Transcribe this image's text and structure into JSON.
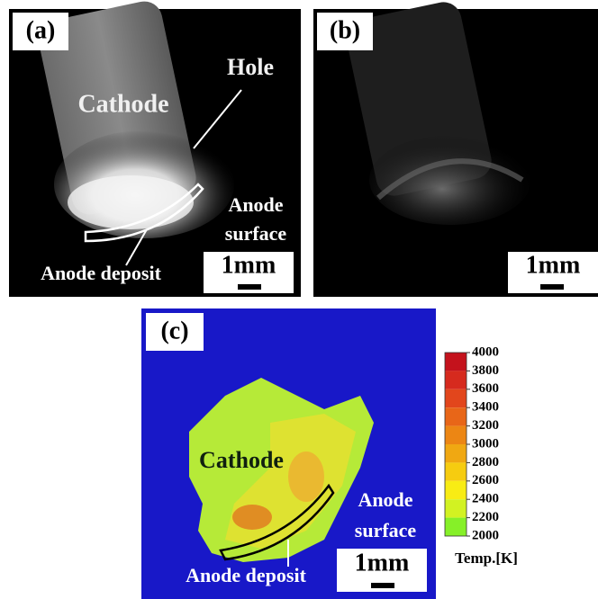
{
  "panels": {
    "a": {
      "label": "(a)",
      "hole": "Hole",
      "cathode": "Cathode",
      "anode_surface": [
        "Anode",
        "surface"
      ],
      "anode_deposit": "Anode deposit",
      "scale": "1mm"
    },
    "b": {
      "label": "(b)",
      "scale": "1mm"
    },
    "c": {
      "label": "(c)",
      "cathode": "Cathode",
      "anode_surface": [
        "Anode",
        "surface"
      ],
      "anode_deposit": "Anode deposit",
      "scale": "1mm"
    }
  },
  "colorbar": {
    "label": "Temp.[K]",
    "ticks": [
      4000,
      3800,
      3600,
      3400,
      3200,
      3000,
      2800,
      2600,
      2400,
      2200,
      2000
    ],
    "colors": [
      "#c4121c",
      "#d62a1e",
      "#e2461c",
      "#e86618",
      "#ec8614",
      "#f0a812",
      "#f6cc10",
      "#f8ec14",
      "#d2f222",
      "#86f028"
    ]
  }
}
